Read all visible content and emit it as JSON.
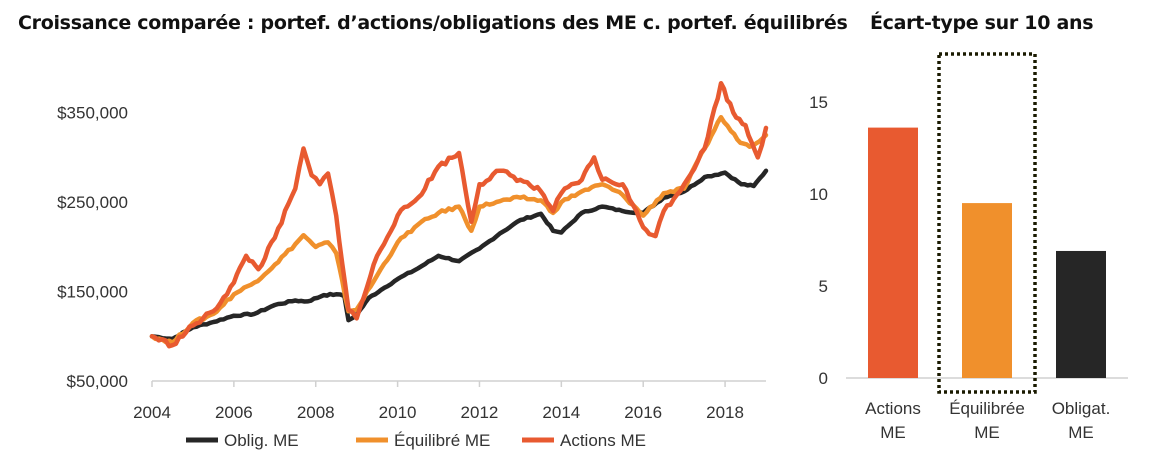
{
  "chart_data": [
    {
      "type": "line",
      "title": "Croissance comparée : portef. d’actions/obligations des ME c. portef. équilibrés",
      "xlabel": "",
      "ylabel": "",
      "xlim": [
        2004,
        2019
      ],
      "ylim": [
        50000,
        400000
      ],
      "x_ticks": [
        2004,
        2006,
        2008,
        2010,
        2012,
        2014,
        2016,
        2018
      ],
      "y_ticks": [
        50000,
        150000,
        250000,
        350000
      ],
      "y_tick_labels": [
        "$50,000",
        "$150,000",
        "$250,000",
        "$350,000"
      ],
      "legend_position": "bottom",
      "series": [
        {
          "name": "Oblig. ME",
          "color": "#262626",
          "points": [
            [
              2004,
              100000
            ],
            [
              2004.5,
              97000
            ],
            [
              2005,
              110000
            ],
            [
              2005.5,
              116000
            ],
            [
              2006,
              123000
            ],
            [
              2006.5,
              125000
            ],
            [
              2007,
              135000
            ],
            [
              2007.5,
              140000
            ],
            [
              2007.8,
              139000
            ],
            [
              2008.2,
              146000
            ],
            [
              2008.5,
              147000
            ],
            [
              2008.7,
              145000
            ],
            [
              2008.8,
              118000
            ],
            [
              2009,
              124000
            ],
            [
              2009.3,
              143000
            ],
            [
              2009.6,
              152000
            ],
            [
              2010,
              164000
            ],
            [
              2010.5,
              176000
            ],
            [
              2011,
              190000
            ],
            [
              2011.5,
              184000
            ],
            [
              2012,
              198000
            ],
            [
              2012.5,
              215000
            ],
            [
              2013,
              230000
            ],
            [
              2013.5,
              237000
            ],
            [
              2013.8,
              218000
            ],
            [
              2014,
              216000
            ],
            [
              2014.5,
              238000
            ],
            [
              2015,
              245000
            ],
            [
              2015.5,
              240000
            ],
            [
              2016,
              238000
            ],
            [
              2016.5,
              255000
            ],
            [
              2017,
              262000
            ],
            [
              2017.5,
              278000
            ],
            [
              2018,
              283000
            ],
            [
              2018.4,
              270000
            ],
            [
              2018.7,
              268000
            ],
            [
              2019,
              285000
            ]
          ]
        },
        {
          "name": "Équilibré ME",
          "color": "#f0902c",
          "points": [
            [
              2004,
              100000
            ],
            [
              2004.5,
              93000
            ],
            [
              2005,
              115000
            ],
            [
              2005.5,
              125000
            ],
            [
              2006,
              147000
            ],
            [
              2006.5,
              160000
            ],
            [
              2007,
              180000
            ],
            [
              2007.5,
              203000
            ],
            [
              2007.7,
              213000
            ],
            [
              2008,
              200000
            ],
            [
              2008.3,
              205000
            ],
            [
              2008.5,
              193000
            ],
            [
              2008.8,
              128000
            ],
            [
              2009,
              130000
            ],
            [
              2009.5,
              168000
            ],
            [
              2010,
              205000
            ],
            [
              2010.5,
              225000
            ],
            [
              2011,
              238000
            ],
            [
              2011.5,
              245000
            ],
            [
              2011.8,
              218000
            ],
            [
              2012,
              245000
            ],
            [
              2012.5,
              251000
            ],
            [
              2013,
              255000
            ],
            [
              2013.5,
              252000
            ],
            [
              2013.8,
              238000
            ],
            [
              2014,
              250000
            ],
            [
              2014.5,
              262000
            ],
            [
              2015,
              270000
            ],
            [
              2015.5,
              258000
            ],
            [
              2016,
              235000
            ],
            [
              2016.5,
              260000
            ],
            [
              2017,
              265000
            ],
            [
              2017.5,
              310000
            ],
            [
              2017.9,
              345000
            ],
            [
              2018.3,
              320000
            ],
            [
              2018.6,
              312000
            ],
            [
              2019,
              325000
            ]
          ]
        },
        {
          "name": "Actions ME",
          "color": "#e85a30",
          "points": [
            [
              2004,
              100000
            ],
            [
              2004.5,
              90000
            ],
            [
              2005,
              112000
            ],
            [
              2005.5,
              128000
            ],
            [
              2006,
              160000
            ],
            [
              2006.3,
              190000
            ],
            [
              2006.6,
              175000
            ],
            [
              2007,
              210000
            ],
            [
              2007.5,
              265000
            ],
            [
              2007.7,
              310000
            ],
            [
              2007.9,
              280000
            ],
            [
              2008.1,
              270000
            ],
            [
              2008.3,
              282000
            ],
            [
              2008.5,
              235000
            ],
            [
              2008.8,
              130000
            ],
            [
              2009,
              120000
            ],
            [
              2009.5,
              190000
            ],
            [
              2010,
              235000
            ],
            [
              2010.5,
              255000
            ],
            [
              2011,
              290000
            ],
            [
              2011.5,
              305000
            ],
            [
              2011.8,
              228000
            ],
            [
              2012,
              270000
            ],
            [
              2012.5,
              285000
            ],
            [
              2013,
              275000
            ],
            [
              2013.5,
              262000
            ],
            [
              2013.8,
              240000
            ],
            [
              2014,
              260000
            ],
            [
              2014.5,
              275000
            ],
            [
              2014.8,
              300000
            ],
            [
              2015,
              275000
            ],
            [
              2015.5,
              270000
            ],
            [
              2016,
              222000
            ],
            [
              2016.3,
              212000
            ],
            [
              2016.5,
              240000
            ],
            [
              2017,
              270000
            ],
            [
              2017.5,
              310000
            ],
            [
              2017.9,
              383000
            ],
            [
              2018.2,
              350000
            ],
            [
              2018.5,
              336000
            ],
            [
              2018.8,
              300000
            ],
            [
              2019,
              333000
            ]
          ]
        }
      ]
    },
    {
      "type": "bar",
      "title": "Écart-type sur 10 ans",
      "xlabel": "",
      "ylabel": "",
      "ylim": [
        0,
        17
      ],
      "y_ticks": [
        0,
        5,
        10,
        15
      ],
      "grid": false,
      "categories": [
        [
          "Actions",
          "ME"
        ],
        [
          "Équilibrée",
          "ME"
        ],
        [
          "Obligat.",
          "ME"
        ]
      ],
      "values": [
        13.6,
        9.5,
        6.9
      ],
      "colors": [
        "#e85a30",
        "#f0902c",
        "#262626"
      ],
      "highlighted_category_index": 1
    }
  ]
}
